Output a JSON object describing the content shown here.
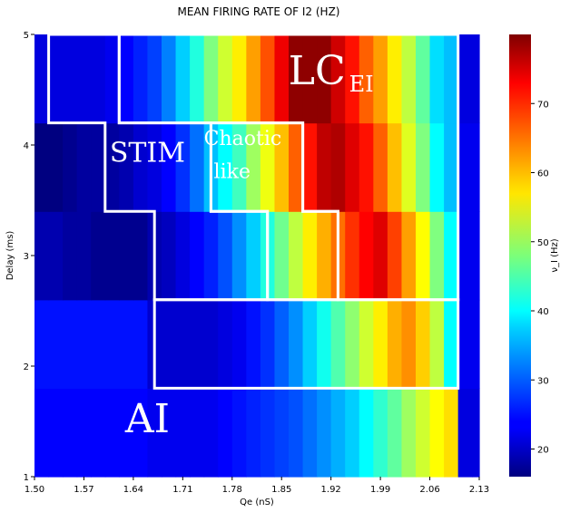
{
  "chart_data": {
    "type": "heatmap",
    "title": "MEAN FIRING RATE OF I2 (HZ)",
    "xlabel": "Qe (nS)",
    "ylabel": "Delay (ms)",
    "colorbar_label": "ν_I (Hz)",
    "colormap": "jet",
    "value_range": [
      16,
      80
    ],
    "x_values": [
      1.5,
      1.52,
      1.54,
      1.56,
      1.58,
      1.6,
      1.62,
      1.64,
      1.66,
      1.68,
      1.7,
      1.72,
      1.74,
      1.76,
      1.78,
      1.8,
      1.82,
      1.84,
      1.86,
      1.88,
      1.9,
      1.92,
      1.94,
      1.96,
      1.98,
      2.0,
      2.02,
      2.04,
      2.06,
      2.08,
      2.1,
      2.12
    ],
    "y_values": [
      1.0,
      1.8,
      2.6,
      3.4,
      4.2,
      5.0
    ],
    "x_ticks": [
      "1.50",
      "1.57",
      "1.64",
      "1.71",
      "1.78",
      "1.85",
      "1.92",
      "1.99",
      "2.06",
      "2.13"
    ],
    "y_ticks": [
      "1",
      "2",
      "3",
      "4",
      "5"
    ],
    "colorbar_ticks": [
      "20",
      "30",
      "40",
      "50",
      "60",
      "70"
    ],
    "rows": [
      {
        "delay": 1.4,
        "values": [
          24,
          24,
          24,
          24,
          24,
          24,
          24,
          24,
          23,
          23,
          23,
          23,
          23,
          24,
          25,
          26,
          27,
          28,
          29,
          31,
          33,
          35,
          37,
          40,
          43,
          46,
          50,
          53,
          56,
          58,
          22,
          22
        ]
      },
      {
        "delay": 2.2,
        "values": [
          25,
          25,
          25,
          25,
          25,
          25,
          25,
          25,
          21,
          21,
          21,
          21,
          21,
          22,
          23,
          25,
          27,
          30,
          33,
          37,
          41,
          45,
          49,
          53,
          57,
          61,
          63,
          59,
          52,
          40,
          23,
          23
        ]
      },
      {
        "delay": 3.0,
        "values": [
          19,
          19,
          18,
          18,
          17,
          17,
          17,
          17,
          19,
          20,
          22,
          24,
          26,
          29,
          33,
          37,
          42,
          47,
          52,
          57,
          61,
          65,
          69,
          72,
          74,
          68,
          62,
          56,
          48,
          40,
          23,
          23
        ]
      },
      {
        "delay": 3.8,
        "values": [
          16,
          16,
          17,
          18,
          18,
          18,
          19,
          21,
          22,
          24,
          27,
          31,
          36,
          40,
          44,
          50,
          55,
          60,
          66,
          71,
          76,
          77,
          74,
          71,
          66,
          60,
          54,
          48,
          40,
          36,
          23,
          23
        ]
      },
      {
        "delay": 4.6,
        "values": [
          22,
          22,
          22,
          22,
          22,
          23,
          24,
          26,
          28,
          32,
          37,
          42,
          48,
          53,
          57,
          62,
          67,
          73,
          79,
          79,
          79,
          75,
          71,
          66,
          62,
          57,
          52,
          46,
          38,
          36,
          22,
          22
        ]
      }
    ],
    "regions": [
      {
        "label": "AI",
        "sub": "",
        "polygon": [
          [
            1.5,
            1.0
          ],
          [
            2.12,
            1.0
          ],
          [
            2.12,
            5.0
          ],
          [
            1.5,
            5.0
          ]
        ]
      },
      {
        "label": "STIM",
        "sub": "",
        "polygon": [
          [
            1.52,
            5.0
          ],
          [
            1.52,
            4.2
          ],
          [
            1.6,
            4.2
          ],
          [
            1.6,
            3.4
          ],
          [
            1.67,
            3.4
          ],
          [
            1.67,
            2.6
          ],
          [
            1.83,
            2.6
          ],
          [
            1.83,
            3.4
          ],
          [
            1.75,
            3.4
          ],
          [
            1.75,
            4.2
          ],
          [
            1.62,
            4.2
          ],
          [
            1.62,
            5.0
          ]
        ]
      },
      {
        "label": "Chaotic\nlike",
        "sub": "",
        "polygon": [
          [
            1.75,
            4.2
          ],
          [
            1.88,
            4.2
          ],
          [
            1.88,
            3.4
          ],
          [
            1.93,
            3.4
          ],
          [
            1.93,
            2.6
          ],
          [
            1.83,
            2.6
          ],
          [
            1.83,
            3.4
          ],
          [
            1.75,
            3.4
          ]
        ]
      },
      {
        "label": "LC",
        "sub": "EI",
        "polygon": [
          [
            1.62,
            5.0
          ],
          [
            2.1,
            5.0
          ],
          [
            2.1,
            2.6
          ],
          [
            1.93,
            2.6
          ],
          [
            1.93,
            3.4
          ],
          [
            1.88,
            3.4
          ],
          [
            1.88,
            4.2
          ],
          [
            1.62,
            4.2
          ]
        ]
      },
      {
        "label": "",
        "sub": "",
        "polygon": [
          [
            1.67,
            2.6
          ],
          [
            2.1,
            2.6
          ],
          [
            2.1,
            1.8
          ],
          [
            1.67,
            1.8
          ]
        ]
      }
    ],
    "region_text": [
      {
        "text": "LC",
        "sub": "EI",
        "x": 1.92,
        "y": 4.55,
        "size": 44
      },
      {
        "text": "STIM",
        "sub": "",
        "x": 1.66,
        "y": 3.85,
        "size": 30
      },
      {
        "text": "Chaotic",
        "sub": "",
        "x": 1.795,
        "y": 4.0,
        "size": 22
      },
      {
        "text": "like",
        "sub": "",
        "x": 1.78,
        "y": 3.7,
        "size": 22
      },
      {
        "text": "AI",
        "sub": "",
        "x": 1.66,
        "y": 1.4,
        "size": 44
      }
    ],
    "grid": false,
    "legend": "colorbar-right"
  }
}
